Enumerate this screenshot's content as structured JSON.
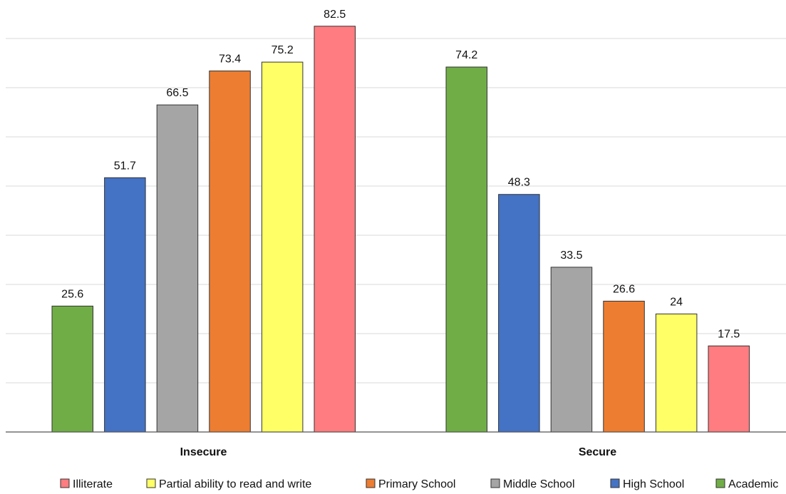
{
  "chart_data": {
    "type": "bar",
    "categories": [
      "Insecure",
      "Secure"
    ],
    "series": [
      {
        "name": "Academic",
        "values": [
          25.6,
          74.2
        ],
        "color": "#70ad47"
      },
      {
        "name": "High School",
        "values": [
          51.7,
          48.3
        ],
        "color": "#4472c4"
      },
      {
        "name": "Middle School",
        "values": [
          66.5,
          33.5
        ],
        "color": "#a5a5a5"
      },
      {
        "name": "Primary School",
        "values": [
          73.4,
          26.6
        ],
        "color": "#ed7d31"
      },
      {
        "name": "Partial ability to read and write",
        "values": [
          75.2,
          24
        ],
        "color": "#ffff66"
      },
      {
        "name": "Illiterate",
        "values": [
          82.5,
          17.5
        ],
        "color": "#ff7c80"
      }
    ],
    "value_labels": [
      [
        "25.6",
        "51.7",
        "66.5",
        "73.4",
        "75.2",
        "82.5"
      ],
      [
        "74.2",
        "48.3",
        "33.5",
        "26.6",
        "24",
        "17.5"
      ]
    ],
    "legend_order": [
      "Illiterate",
      "Partial ability to read and write",
      "Primary School",
      "Middle School",
      "High School",
      "Academic"
    ],
    "legend_labels": [
      "Illiterate",
      "Partial ability to read and write",
      "Primary School",
      "Middle School",
      "High School",
      "Academic"
    ],
    "ylim": [
      0,
      90
    ],
    "gridline_step": 10,
    "grid": true,
    "legend_position": "bottom",
    "title": "",
    "xlabel": "",
    "ylabel": ""
  }
}
